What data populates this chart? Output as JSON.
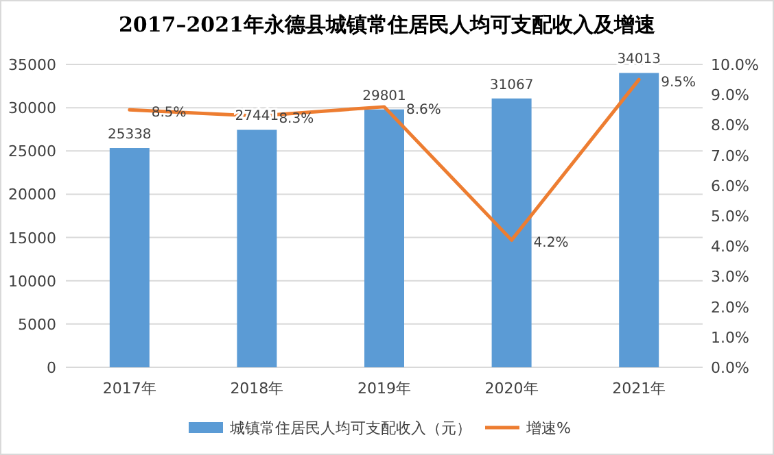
{
  "chart_data": {
    "type": "bar",
    "title": "2017–2021年永德县城镇常住居民人均可支配收入及增速",
    "categories": [
      "2017年",
      "2018年",
      "2019年",
      "2020年",
      "2021年"
    ],
    "series": [
      {
        "name": "城镇常住居民人均可支配收入（元）",
        "type": "bar",
        "color": "#5b9bd5",
        "values": [
          25338,
          27441,
          29801,
          31067,
          34013
        ],
        "value_labels": [
          "25338",
          "27441",
          "29801",
          "31067",
          "34013"
        ]
      },
      {
        "name": "增速%",
        "type": "line",
        "axis": "y2",
        "color": "#ed7d31",
        "values": [
          8.5,
          8.3,
          8.6,
          4.2,
          9.5
        ],
        "value_labels": [
          "8.5%",
          "8.3%",
          "8.6%",
          "4.2%",
          "9.5%"
        ],
        "marker": "none",
        "line_style": "solid"
      }
    ],
    "ylim": [
      0,
      35000
    ],
    "yticks": [
      0,
      5000,
      10000,
      15000,
      20000,
      25000,
      30000,
      35000
    ],
    "y2lim": [
      0,
      10
    ],
    "y2ticks": [
      {
        "value": 0,
        "label": "0.0%"
      },
      {
        "value": 1,
        "label": "1.0%"
      },
      {
        "value": 2,
        "label": "2.0%"
      },
      {
        "value": 3,
        "label": "3.0%"
      },
      {
        "value": 4,
        "label": "4.0%"
      },
      {
        "value": 5,
        "label": "5.0%"
      },
      {
        "value": 6,
        "label": "6.0%"
      },
      {
        "value": 7,
        "label": "7.0%"
      },
      {
        "value": 8,
        "label": "8.0%"
      },
      {
        "value": 9,
        "label": "9.0%"
      },
      {
        "value": 10,
        "label": "10.0%"
      }
    ],
    "grid": "y",
    "legend": "bottom"
  }
}
